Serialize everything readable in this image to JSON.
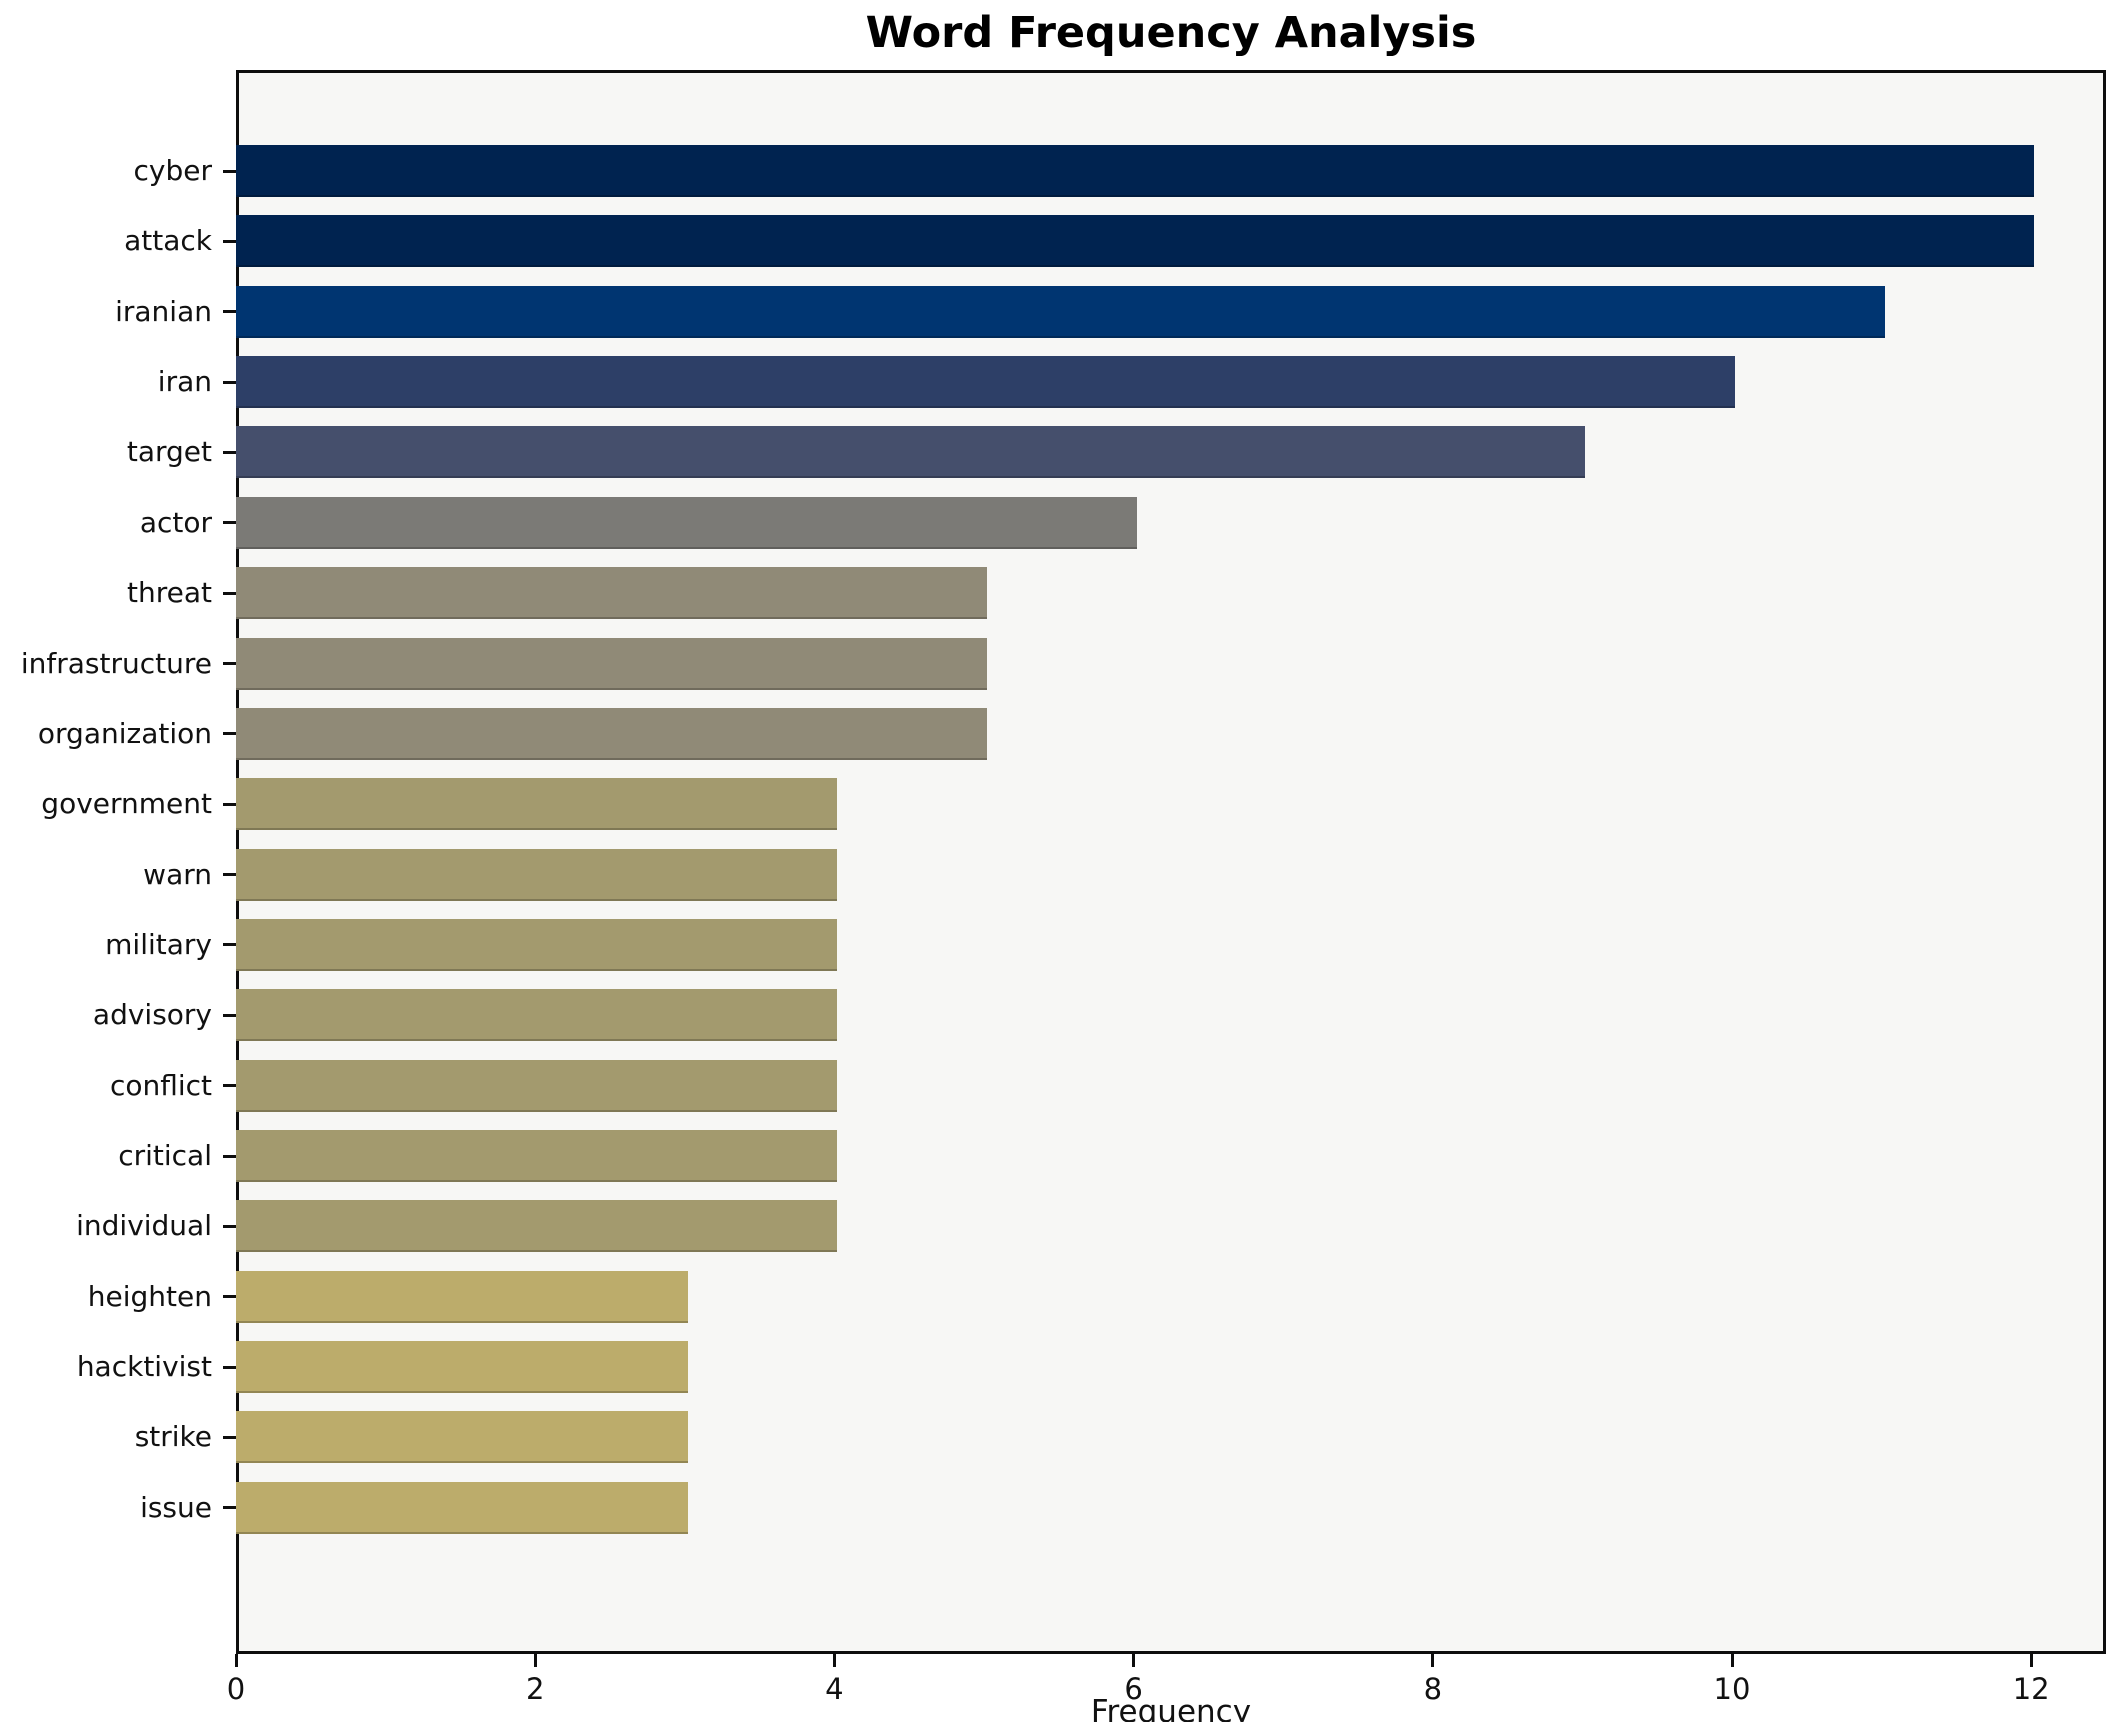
{
  "chart_data": {
    "type": "bar",
    "orientation": "horizontal",
    "title": "Word Frequency Analysis",
    "xlabel": "Frequency",
    "ylabel": "",
    "xlim": [
      0,
      12.5
    ],
    "xticks": [
      0,
      2,
      4,
      6,
      8,
      10,
      12
    ],
    "grid": false,
    "legend": null,
    "plot_background": "#f7f7f5",
    "figure_background": "#ffffff",
    "categories": [
      "cyber",
      "attack",
      "iranian",
      "iran",
      "target",
      "actor",
      "threat",
      "infrastructure",
      "organization",
      "government",
      "warn",
      "military",
      "advisory",
      "conflict",
      "critical",
      "individual",
      "heighten",
      "hacktivist",
      "strike",
      "issue"
    ],
    "values": [
      12,
      12,
      11,
      10,
      9,
      6,
      5,
      5,
      5,
      4,
      4,
      4,
      4,
      4,
      4,
      4,
      3,
      3,
      3,
      3
    ],
    "bars": [
      {
        "label": "cyber",
        "value": 12,
        "color": "#002350"
      },
      {
        "label": "attack",
        "value": 12,
        "color": "#002350"
      },
      {
        "label": "iranian",
        "value": 11,
        "color": "#003571"
      },
      {
        "label": "iran",
        "value": 10,
        "color": "#2d3f67"
      },
      {
        "label": "target",
        "value": 9,
        "color": "#454f6c"
      },
      {
        "label": "actor",
        "value": 6,
        "color": "#7b7a76"
      },
      {
        "label": "threat",
        "value": 5,
        "color": "#908a77"
      },
      {
        "label": "infrastructure",
        "value": 5,
        "color": "#908a77"
      },
      {
        "label": "organization",
        "value": 5,
        "color": "#908a77"
      },
      {
        "label": "government",
        "value": 4,
        "color": "#a39a6e"
      },
      {
        "label": "warn",
        "value": 4,
        "color": "#a39a6e"
      },
      {
        "label": "military",
        "value": 4,
        "color": "#a39a6e"
      },
      {
        "label": "advisory",
        "value": 4,
        "color": "#a39a6e"
      },
      {
        "label": "conflict",
        "value": 4,
        "color": "#a39a6e"
      },
      {
        "label": "critical",
        "value": 4,
        "color": "#a39a6e"
      },
      {
        "label": "individual",
        "value": 4,
        "color": "#a39a6e"
      },
      {
        "label": "heighten",
        "value": 3,
        "color": "#bcac6b"
      },
      {
        "label": "hacktivist",
        "value": 3,
        "color": "#bcac6b"
      },
      {
        "label": "strike",
        "value": 3,
        "color": "#bcac6b"
      },
      {
        "label": "issue",
        "value": 3,
        "color": "#bcac6b"
      }
    ]
  }
}
